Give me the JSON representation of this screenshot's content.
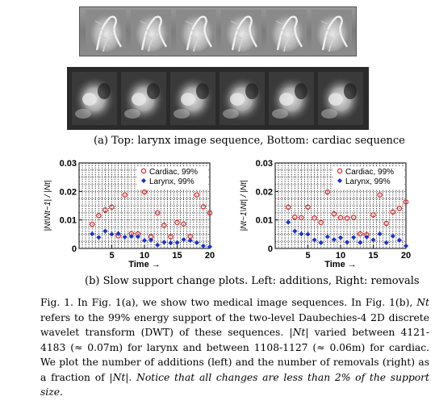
{
  "captions": {
    "subfig_a": "(a) Top: larynx image sequence, Bottom: cardiac sequence",
    "subfig_b": "(b) Slow support change plots. Left: additions, Right: removals"
  },
  "figure_text": {
    "label": "Fig. 1.",
    "body_1": "In Fig. 1(a), we show two medical image sequences. In Fig. 1(b),",
    "Nt": "Nt",
    "body_2": "refers to the 99% energy support of the two-level Daubechies-4 2D discrete wavelet transform (DWT) of these sequences.",
    "abs_Nt": "|Nt|",
    "body_3": "varied between 4121-4183 (≈ 0.07m) for larynx and between 1108-1127 (≈ 0.06m) for cardiac. We plot the number of additions (left) and the number of removals (right) as a fraction of",
    "abs_Nt_2": "|Nt|.",
    "emphasis": "Notice that all changes are less than 2% of the support size."
  },
  "colors": {
    "cardiac": "#e02020",
    "larynx": "#1a2fd0"
  },
  "chart_data": [
    {
      "type": "scatter",
      "title": "",
      "xlabel": "Time →",
      "ylabel": "|Nt\\Nt−1| / |Nt|",
      "xlim": [
        0,
        20
      ],
      "ylim": [
        0,
        0.03
      ],
      "xticks": [
        "5",
        "10",
        "15",
        "20"
      ],
      "yticks": [
        "0",
        "0.01",
        "0.02",
        "0.03"
      ],
      "grid": true,
      "legend": "top-right",
      "series": [
        {
          "name": "Cardiac, 99%",
          "marker": "circle",
          "x": [
            2,
            3,
            4,
            5,
            6,
            7,
            8,
            9,
            10,
            11,
            12,
            13,
            14,
            15,
            16,
            17,
            18,
            19,
            20
          ],
          "y": [
            0.0085,
            0.0115,
            0.0135,
            0.0145,
            0.0044,
            0.0188,
            0.0052,
            0.0051,
            0.0198,
            0.0041,
            0.0125,
            0.0081,
            0.0041,
            0.0091,
            0.0086,
            0.0042,
            0.0188,
            0.0146,
            0.0125
          ]
        },
        {
          "name": "Larynx, 99%",
          "marker": "diamond",
          "x": [
            2,
            3,
            4,
            5,
            6,
            7,
            8,
            9,
            10,
            11,
            12,
            13,
            14,
            15,
            16,
            17,
            18,
            19,
            20
          ],
          "y": [
            0.0051,
            0.0039,
            0.0061,
            0.005,
            0.0052,
            0.004,
            0.0042,
            0.0041,
            0.0028,
            0.003,
            0.0012,
            0.0022,
            0.0019,
            0.002,
            0.0031,
            0.0028,
            0.002,
            0.0009,
            0.0006
          ]
        }
      ]
    },
    {
      "type": "scatter",
      "title": "",
      "xlabel": "Time →",
      "ylabel": "|Nt−1\\Nt| / |Nt|",
      "xlim": [
        0,
        20
      ],
      "ylim": [
        0,
        0.03
      ],
      "xticks": [
        "5",
        "10",
        "15",
        "20"
      ],
      "yticks": [
        "0",
        "0.01",
        "0.02",
        "0.03"
      ],
      "grid": true,
      "legend": "top-right",
      "series": [
        {
          "name": "Cardiac, 99%",
          "marker": "circle",
          "x": [
            2,
            3,
            4,
            5,
            6,
            7,
            8,
            9,
            10,
            11,
            12,
            13,
            14,
            15,
            16,
            17,
            18,
            19,
            20
          ],
          "y": [
            0.0145,
            0.011,
            0.0108,
            0.0145,
            0.0107,
            0.0091,
            0.0198,
            0.0121,
            0.0108,
            0.0106,
            0.0109,
            0.0051,
            0.0048,
            0.0118,
            0.0188,
            0.0088,
            0.0128,
            0.014,
            0.0163
          ]
        },
        {
          "name": "Larynx, 99%",
          "marker": "diamond",
          "x": [
            2,
            3,
            4,
            5,
            6,
            7,
            8,
            9,
            10,
            11,
            12,
            13,
            14,
            15,
            16,
            17,
            18,
            19,
            20
          ],
          "y": [
            0.0092,
            0.0061,
            0.0051,
            0.005,
            0.003,
            0.002,
            0.0041,
            0.0031,
            0.0038,
            0.0022,
            0.0039,
            0.0021,
            0.004,
            0.003,
            0.0051,
            0.002,
            0.0043,
            0.0029,
            0.0009
          ]
        }
      ]
    }
  ]
}
